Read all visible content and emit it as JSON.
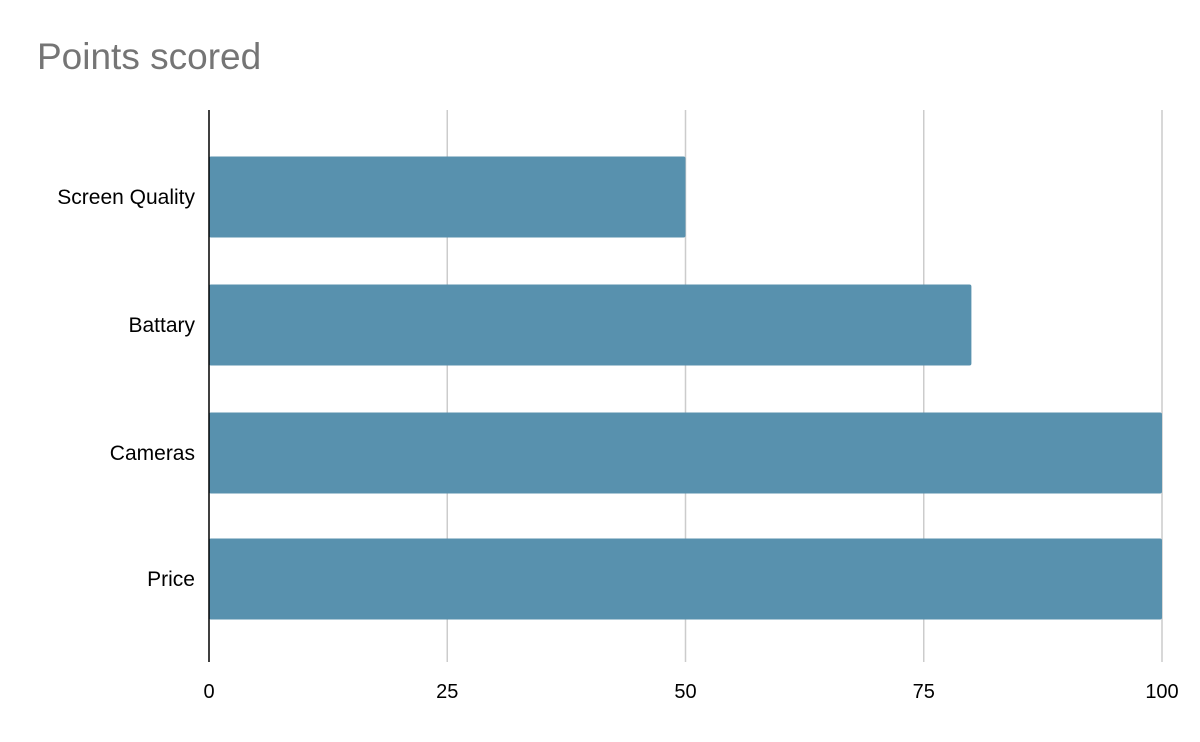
{
  "chart_data": {
    "type": "bar",
    "orientation": "horizontal",
    "title": "Points scored",
    "categories": [
      "Screen Quality",
      "Battary",
      "Cameras",
      "Price"
    ],
    "series": [
      {
        "values": [
          50,
          80,
          100,
          100
        ]
      }
    ],
    "xlim": [
      0,
      100
    ],
    "xticks": [
      "0",
      "25",
      "50",
      "75",
      "100"
    ],
    "grid": true,
    "legend": "none",
    "colors": {
      "bar": "#5891ae",
      "grid": "#cccccc",
      "axis": "#000000",
      "title": "#757575",
      "label": "#000000"
    }
  }
}
